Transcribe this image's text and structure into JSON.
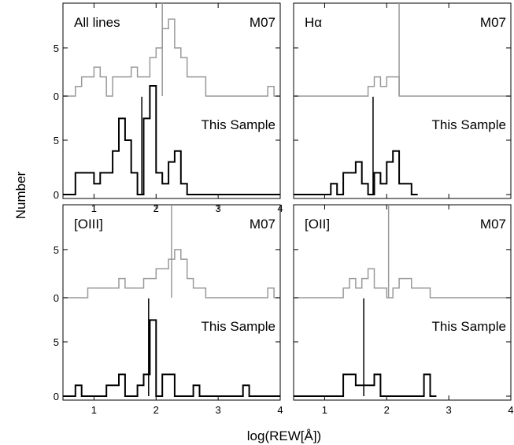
{
  "figure": {
    "xlabel": "log(REW[Å])",
    "ylabel": "Number"
  },
  "chart_data": [
    {
      "type": "bar",
      "panel": "All lines",
      "xlim": [
        0.5,
        4.0
      ],
      "xticks": [
        "1",
        "2",
        "3",
        "4"
      ],
      "bin_width": 0.1,
      "series": [
        {
          "name": "M07",
          "label": "M07",
          "yticks": [
            "0",
            "5"
          ],
          "ylim": [
            0,
            9
          ],
          "bin_starts": [
            0.5,
            0.6,
            0.7,
            0.8,
            0.9,
            1.0,
            1.1,
            1.2,
            1.3,
            1.4,
            1.5,
            1.6,
            1.7,
            1.8,
            1.9,
            2.0,
            2.1,
            2.2,
            2.3,
            2.4,
            2.5,
            2.6,
            2.7,
            2.8,
            2.9,
            3.0,
            3.1,
            3.2,
            3.3,
            3.4,
            3.5,
            3.6,
            3.7,
            3.8,
            3.9
          ],
          "counts": [
            0,
            0,
            1,
            2,
            2,
            3,
            2,
            0,
            2,
            2,
            2,
            3,
            2,
            2,
            4,
            5,
            7,
            8,
            5,
            4,
            2,
            2,
            2,
            0,
            0,
            0,
            0,
            0,
            0,
            0,
            0,
            0,
            0,
            1,
            0
          ],
          "median": 2.1
        },
        {
          "name": "This Sample",
          "label": "This Sample",
          "yticks": [
            "0",
            "5"
          ],
          "ylim": [
            0,
            10
          ],
          "bin_starts": [
            0.5,
            0.6,
            0.7,
            0.8,
            0.9,
            1.0,
            1.1,
            1.2,
            1.3,
            1.4,
            1.5,
            1.6,
            1.7,
            1.8,
            1.9,
            2.0,
            2.1,
            2.2,
            2.3,
            2.4,
            2.5,
            2.6,
            2.7,
            2.8,
            2.9,
            3.0,
            3.1,
            3.2,
            3.3,
            3.4,
            3.5,
            3.6,
            3.7,
            3.8,
            3.9
          ],
          "counts": [
            0,
            0,
            2,
            2,
            2,
            1,
            2,
            2,
            4,
            7,
            5,
            2,
            0,
            7,
            10,
            2,
            1,
            3,
            4,
            1,
            0,
            0,
            0,
            0,
            0,
            0,
            0,
            0,
            0,
            0,
            0,
            0,
            0,
            0,
            0
          ],
          "median": 1.77
        }
      ]
    },
    {
      "type": "bar",
      "panel": "Hα",
      "xlim": [
        0.5,
        4.0
      ],
      "xticks": [
        "",
        "",
        "",
        ""
      ],
      "bin_width": 0.1,
      "series": [
        {
          "name": "M07",
          "label": "M07",
          "yticks": [
            "",
            ""
          ],
          "ylim": [
            0,
            9
          ],
          "bin_starts": [
            1.6,
            1.7,
            1.8,
            1.9,
            2.0,
            2.1,
            2.2
          ],
          "counts": [
            0,
            1,
            2,
            1,
            2,
            2,
            0
          ],
          "median": 2.2
        },
        {
          "name": "This Sample",
          "label": "This Sample",
          "yticks": [
            "",
            ""
          ],
          "ylim": [
            0,
            10
          ],
          "bin_starts": [
            0.5,
            0.6,
            0.7,
            0.8,
            0.9,
            1.0,
            1.1,
            1.2,
            1.3,
            1.4,
            1.5,
            1.6,
            1.7,
            1.8,
            1.9,
            2.0,
            2.1,
            2.2,
            2.3,
            2.4
          ],
          "counts": [
            0,
            0,
            0,
            0,
            0,
            0,
            1,
            0,
            2,
            2,
            3,
            1,
            0,
            2,
            1,
            3,
            4,
            1,
            1,
            0
          ],
          "median": 1.78
        }
      ]
    },
    {
      "type": "bar",
      "panel": "[OIII]",
      "xlim": [
        0.5,
        4.0
      ],
      "xticks": [
        "1",
        "2",
        "3",
        "4"
      ],
      "bin_width": 0.1,
      "series": [
        {
          "name": "M07",
          "label": "M07",
          "yticks": [
            "0",
            "5"
          ],
          "ylim": [
            0,
            9
          ],
          "bin_starts": [
            0.5,
            0.6,
            0.7,
            0.8,
            0.9,
            1.0,
            1.1,
            1.2,
            1.3,
            1.4,
            1.5,
            1.6,
            1.7,
            1.8,
            1.9,
            2.0,
            2.1,
            2.2,
            2.3,
            2.4,
            2.5,
            2.6,
            2.7,
            2.8,
            2.9,
            3.0,
            3.1,
            3.2,
            3.3,
            3.4,
            3.5,
            3.6,
            3.7,
            3.8,
            3.9
          ],
          "counts": [
            0,
            0,
            0,
            0,
            1,
            1,
            1,
            1,
            1,
            2,
            1,
            1,
            1,
            2,
            2,
            3,
            3,
            4,
            5,
            4,
            2,
            1,
            1,
            0,
            0,
            0,
            0,
            0,
            0,
            0,
            0,
            0,
            0,
            1,
            0
          ],
          "median": 2.25
        },
        {
          "name": "This Sample",
          "label": "This Sample",
          "yticks": [
            "0",
            "5"
          ],
          "ylim": [
            0,
            10
          ],
          "bin_starts": [
            0.5,
            0.6,
            0.7,
            0.8,
            0.9,
            1.0,
            1.1,
            1.2,
            1.3,
            1.4,
            1.5,
            1.6,
            1.7,
            1.8,
            1.9,
            2.0,
            2.1,
            2.2,
            2.3,
            2.4,
            2.5,
            2.6,
            2.7,
            2.8,
            2.9,
            3.0,
            3.1,
            3.2,
            3.3,
            3.4,
            3.5,
            3.6,
            3.7,
            3.8,
            3.9
          ],
          "counts": [
            0,
            0,
            1,
            0,
            0,
            0,
            0,
            1,
            1,
            2,
            0,
            0,
            1,
            2,
            7,
            0,
            2,
            2,
            0,
            0,
            0,
            1,
            0,
            0,
            0,
            0,
            0,
            0,
            0,
            1,
            0,
            0,
            0,
            0,
            0
          ],
          "median": 1.88
        }
      ]
    },
    {
      "type": "bar",
      "panel": "[OII]",
      "xlim": [
        0.5,
        4.0
      ],
      "xticks": [
        "1",
        "2",
        "3",
        "4"
      ],
      "bin_width": 0.1,
      "series": [
        {
          "name": "M07",
          "label": "M07",
          "yticks": [
            "",
            ""
          ],
          "ylim": [
            0,
            9
          ],
          "bin_starts": [
            1.3,
            1.4,
            1.5,
            1.6,
            1.7,
            1.8,
            1.9,
            2.0,
            2.1,
            2.2,
            2.3,
            2.4,
            2.5,
            2.6,
            2.7
          ],
          "counts": [
            1,
            2,
            1,
            2,
            3,
            1,
            1,
            0,
            1,
            2,
            2,
            1,
            1,
            1,
            0
          ],
          "median": 2.03
        },
        {
          "name": "This Sample",
          "label": "This Sample",
          "yticks": [
            "",
            ""
          ],
          "ylim": [
            0,
            10
          ],
          "bin_starts": [
            1.3,
            1.4,
            1.5,
            1.6,
            1.7,
            1.8,
            1.9,
            2.0,
            2.1,
            2.2,
            2.3,
            2.4,
            2.5,
            2.6,
            2.7
          ],
          "counts": [
            2,
            2,
            1,
            1,
            1,
            2,
            0,
            0,
            0,
            0,
            0,
            0,
            0,
            2,
            0
          ],
          "median": 1.63
        }
      ]
    }
  ]
}
